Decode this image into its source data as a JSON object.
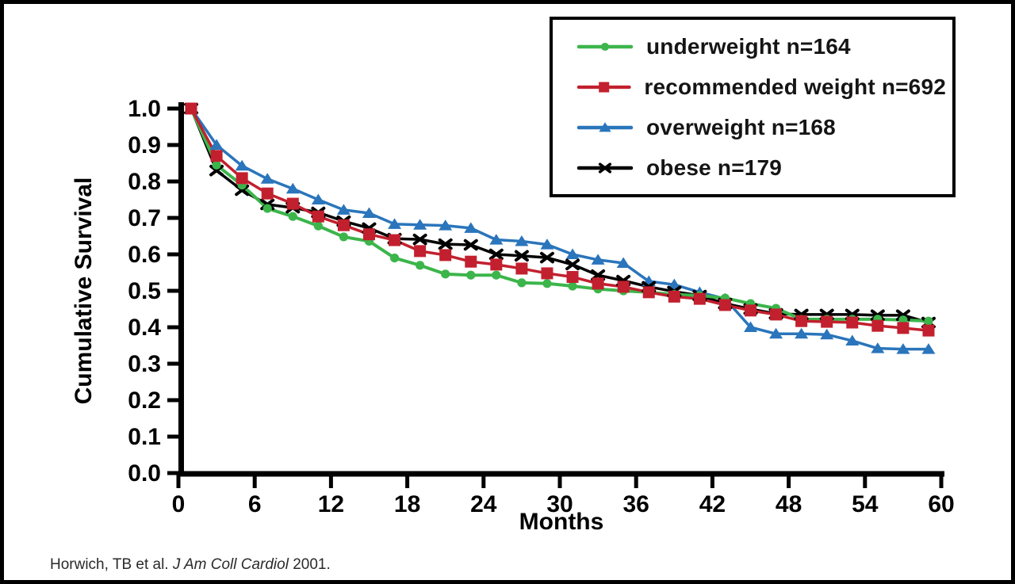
{
  "figure": {
    "citation_prefix": "Horwich, TB et al. ",
    "citation_journal": "J Am Coll Cardiol",
    "citation_suffix": " 2001."
  },
  "chart_data": {
    "type": "line",
    "title": "",
    "xlabel": "Months",
    "ylabel": "Cumulative Survival",
    "xlim": [
      0,
      60
    ],
    "ylim": [
      0.0,
      1.0
    ],
    "grid": false,
    "legend_position": "top-right",
    "xtick_labels": [
      "0",
      "6",
      "12",
      "18",
      "24",
      "30",
      "36",
      "42",
      "48",
      "54",
      "60"
    ],
    "ytick_labels": [
      "1.0",
      "0.9",
      "0.8",
      "0.7",
      "0.6",
      "0.5",
      "0.4",
      "0.3",
      "0.2",
      "0.1",
      "0.0"
    ],
    "x_months": [
      1,
      3,
      5,
      7,
      9,
      11,
      13,
      15,
      17,
      19,
      21,
      23,
      25,
      27,
      29,
      31,
      33,
      35,
      37,
      39,
      41,
      43,
      45,
      47,
      49,
      51,
      53,
      55,
      57,
      59
    ],
    "series": [
      {
        "name": "underweight",
        "label": "underweight n=164",
        "n": 164,
        "color": "#3cb54b",
        "marker": "circle",
        "line_width": 4,
        "values": [
          1.0,
          0.845,
          0.79,
          0.726,
          0.704,
          0.678,
          0.648,
          0.636,
          0.59,
          0.57,
          0.546,
          0.543,
          0.543,
          0.522,
          0.52,
          0.513,
          0.505,
          0.5,
          0.496,
          0.49,
          0.487,
          0.48,
          0.465,
          0.452,
          0.422,
          0.422,
          0.422,
          0.422,
          0.42,
          0.417
        ]
      },
      {
        "name": "recommended weight",
        "label": "recommended weight n=692",
        "n": 692,
        "color": "#c2202e",
        "marker": "square",
        "line_width": 3.5,
        "values": [
          1.0,
          0.87,
          0.809,
          0.767,
          0.739,
          0.704,
          0.68,
          0.655,
          0.639,
          0.609,
          0.598,
          0.58,
          0.572,
          0.561,
          0.548,
          0.538,
          0.52,
          0.511,
          0.496,
          0.484,
          0.478,
          0.461,
          0.446,
          0.435,
          0.417,
          0.415,
          0.413,
          0.404,
          0.398,
          0.391
        ]
      },
      {
        "name": "overweight",
        "label": "overweight n=168",
        "n": 168,
        "color": "#2a75bb",
        "marker": "triangle",
        "line_width": 3.5,
        "values": [
          1.0,
          0.9,
          0.843,
          0.807,
          0.78,
          0.75,
          0.722,
          0.713,
          0.683,
          0.681,
          0.679,
          0.672,
          0.64,
          0.636,
          0.627,
          0.6,
          0.585,
          0.576,
          0.526,
          0.517,
          0.496,
          0.478,
          0.4,
          0.382,
          0.382,
          0.38,
          0.363,
          0.342,
          0.34,
          0.34
        ]
      },
      {
        "name": "obese",
        "label": "obese n=179",
        "n": 179,
        "color": "#000000",
        "marker": "x",
        "line_width": 3.5,
        "values": [
          1.0,
          0.83,
          0.776,
          0.737,
          0.728,
          0.715,
          0.691,
          0.672,
          0.643,
          0.641,
          0.628,
          0.626,
          0.6,
          0.596,
          0.591,
          0.572,
          0.543,
          0.528,
          0.511,
          0.498,
          0.487,
          0.465,
          0.45,
          0.437,
          0.435,
          0.435,
          0.435,
          0.433,
          0.433,
          0.413
        ]
      }
    ]
  }
}
